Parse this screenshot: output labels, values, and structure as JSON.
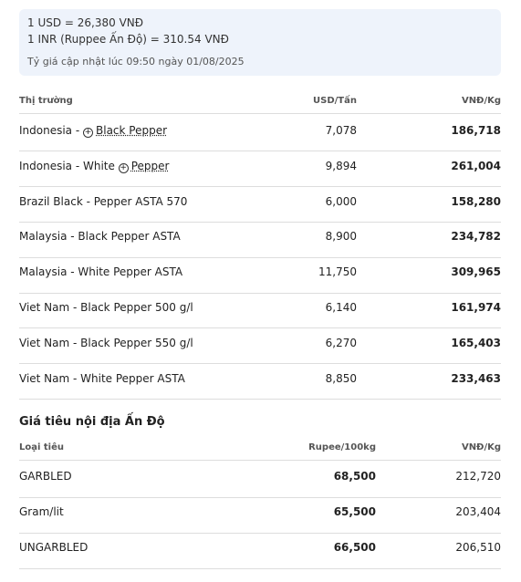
{
  "rates": {
    "lines": [
      "1 USD = 26,380 VNĐ",
      "1 INR (Ruppee Ấn Độ) = 310.54 VNĐ"
    ],
    "updated": "Tỷ giá cập nhật lúc 09:50 ngày 01/08/2025"
  },
  "table": {
    "headers": [
      "Thị trường",
      "USD/Tấn",
      "VNĐ/Kg"
    ],
    "rows": [
      [
        {
          "text": "Indonesia - ",
          "link": "Black Pepper"
        },
        "7,078",
        "186,718"
      ],
      [
        {
          "text": "Indonesia - White ",
          "link": "Pepper"
        },
        "9,894",
        "261,004"
      ],
      [
        "Brazil Black - Pepper ASTA 570",
        "6,000",
        "158,280"
      ],
      [
        "Malaysia - Black Pepper ASTA",
        "8,900",
        "234,782"
      ],
      [
        "Malaysia - White Pepper ASTA",
        "11,750",
        "309,965"
      ],
      [
        "Viet Nam - Black Pepper 500 g/l",
        "6,140",
        "161,974"
      ],
      [
        "Viet Nam - Black Pepper 550 g/l",
        "6,270",
        "165,403"
      ],
      [
        "Viet Nam - White Pepper ASTA",
        "8,850",
        "233,463"
      ]
    ]
  },
  "india": {
    "title": "Giá tiêu nội địa Ấn Độ",
    "headers": [
      "Loại tiêu",
      "Rupee/100kg",
      "VNĐ/Kg"
    ],
    "rows": [
      [
        "GARBLED",
        "68,500",
        "212,720"
      ],
      [
        "Gram/lit",
        "65,500",
        "203,404"
      ],
      [
        "UNGARBLED",
        "66,500",
        "206,510"
      ]
    ]
  }
}
